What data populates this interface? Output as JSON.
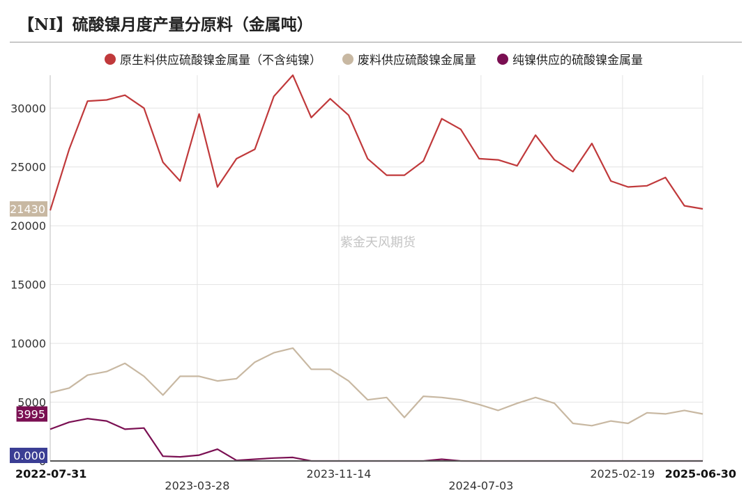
{
  "title": "【NI】硫酸镍月度产量分原料（金属吨）",
  "watermark": "紫金天风期货",
  "chart_data": {
    "type": "line",
    "title": "【NI】硫酸镍月度产量分原料（金属吨）",
    "xlabel": "",
    "ylabel": "",
    "ylim": [
      0,
      32800
    ],
    "yticks": [
      0,
      5000,
      10000,
      15000,
      20000,
      25000,
      30000
    ],
    "ytick_labels": [
      "0",
      "5000",
      "10000",
      "15000",
      "20000",
      "25000",
      "30000"
    ],
    "x": [
      "2022-07-31",
      "2022-08-31",
      "2022-09-30",
      "2022-10-31",
      "2022-11-30",
      "2022-12-31",
      "2023-01-31",
      "2023-02-28",
      "2023-03-31",
      "2023-04-30",
      "2023-05-31",
      "2023-06-30",
      "2023-07-31",
      "2023-08-31",
      "2023-09-30",
      "2023-10-31",
      "2023-11-30",
      "2023-12-31",
      "2024-01-31",
      "2024-02-29",
      "2024-03-31",
      "2024-04-30",
      "2024-05-31",
      "2024-06-30",
      "2024-07-31",
      "2024-08-31",
      "2024-09-30",
      "2024-10-31",
      "2024-11-30",
      "2024-12-31",
      "2025-01-31",
      "2025-02-28",
      "2025-03-31",
      "2025-04-30",
      "2025-05-31",
      "2025-06-30"
    ],
    "xtick_labels": [
      {
        "label": "2022-07-31",
        "date": "2022-07-31",
        "bold": true,
        "row": 1
      },
      {
        "label": "2023-03-28",
        "date": "2023-03-28",
        "bold": false,
        "row": 2
      },
      {
        "label": "2023-11-14",
        "date": "2023-11-14",
        "bold": false,
        "row": 1
      },
      {
        "label": "2024-07-03",
        "date": "2024-07-03",
        "bold": false,
        "row": 2
      },
      {
        "label": "2025-02-19",
        "date": "2025-02-19",
        "bold": false,
        "row": 1
      },
      {
        "label": "2025-06-30",
        "date": "2025-06-30",
        "bold": true,
        "row": 1
      }
    ],
    "series": [
      {
        "name": "原生料供应硫酸镍金属量（不含纯镍）",
        "color": "#c0393b",
        "end_label": "21430",
        "end_label_bg": "#c8b8a2",
        "values": [
          21300,
          26500,
          30600,
          30700,
          31100,
          30000,
          25400,
          23800,
          29500,
          23300,
          25700,
          26500,
          31000,
          32800,
          29200,
          30800,
          29400,
          25700,
          24300,
          24300,
          25500,
          29100,
          28200,
          25700,
          25600,
          25100,
          27700,
          25600,
          24600,
          27000,
          23800,
          23300,
          23400,
          24100,
          21700,
          21430
        ]
      },
      {
        "name": "废料供应硫酸镍金属量",
        "color": "#c8b8a2",
        "end_label": "3995",
        "end_label_bg": "#7a0f52",
        "values": [
          5800,
          6200,
          7300,
          7600,
          8300,
          7200,
          5600,
          7200,
          7200,
          6800,
          7000,
          8400,
          9200,
          9600,
          7800,
          7800,
          6800,
          5200,
          5400,
          3700,
          5500,
          5400,
          5200,
          4800,
          4300,
          4900,
          5400,
          4900,
          3200,
          3000,
          3400,
          3200,
          4100,
          4000,
          4300,
          3995
        ]
      },
      {
        "name": "纯镍供应的硫酸镍金属量",
        "color": "#7a0f52",
        "end_label": "0.000",
        "end_label_bg": "#3b3e94",
        "values": [
          2700,
          3300,
          3600,
          3400,
          2700,
          2800,
          400,
          350,
          500,
          1000,
          50,
          150,
          250,
          300,
          0,
          0,
          0,
          0,
          0,
          0,
          0,
          150,
          0,
          0,
          0,
          0,
          0,
          0,
          0,
          0,
          0,
          0,
          0,
          0,
          0,
          0
        ]
      }
    ],
    "legend": "top",
    "grid": true
  }
}
